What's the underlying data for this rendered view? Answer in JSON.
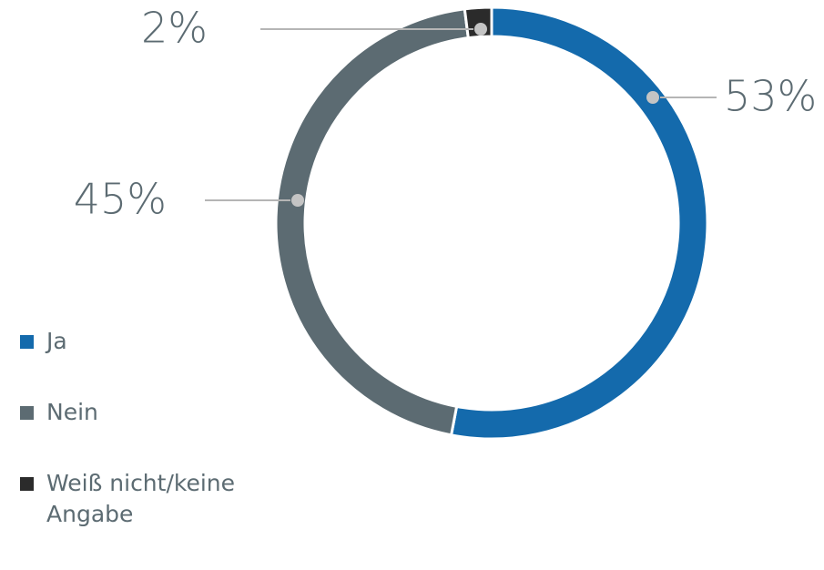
{
  "chart_data": {
    "type": "donut",
    "categories": [
      "Ja",
      "Nein",
      "Weiß nicht/keine Angabe"
    ],
    "values": [
      53,
      45,
      2
    ],
    "value_labels": [
      "53%",
      "45%",
      "2%"
    ],
    "colors": [
      "#146aac",
      "#5c6b72",
      "#2b2b2b"
    ],
    "legend": "bottom-left"
  }
}
